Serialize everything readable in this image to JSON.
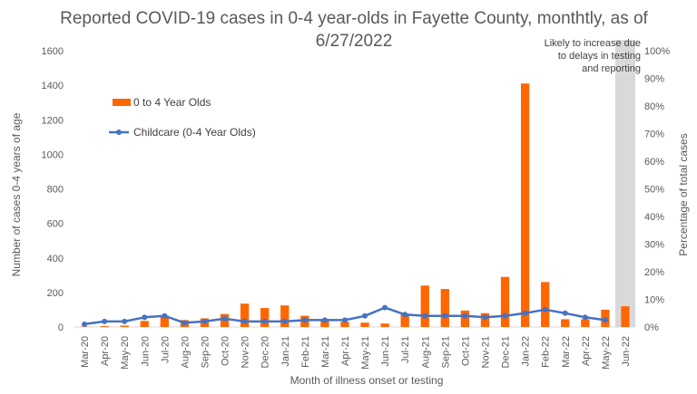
{
  "chart_data": {
    "type": "bar",
    "title": "Reported COVID-19 cases in 0-4 year-olds in Fayette County, monthtly, as of 6/27/2022",
    "xlabel": "Month of illness onset or testing",
    "ylabel": "Number of cases 0-4 years of age",
    "y2label": "Percentage of total cases",
    "categories": [
      "Mar-20",
      "Apr-20",
      "May-20",
      "Jun-20",
      "Jul-20",
      "Aug-20",
      "Sep-20",
      "Oct-20",
      "Nov-20",
      "Dec-20",
      "Jan-21",
      "Feb-21",
      "Mar-21",
      "Apr-21",
      "May-21",
      "Jun-21",
      "Jul-21",
      "Aug-21",
      "Sep-21",
      "Oct-21",
      "Nov-21",
      "Dec-21",
      "Jan-22",
      "Feb-22",
      "Mar-22",
      "Apr-22",
      "May-22",
      "Jun-22"
    ],
    "ylim": [
      0,
      1600
    ],
    "yticks": [
      "0",
      "200",
      "400",
      "600",
      "800",
      "1000",
      "1200",
      "1400",
      "1600"
    ],
    "y2lim": [
      0,
      100
    ],
    "y2ticks": [
      "0%",
      "10%",
      "20%",
      "30%",
      "40%",
      "50%",
      "60%",
      "70%",
      "80%",
      "90%",
      "100%"
    ],
    "series": [
      {
        "name": "0 to 4 Year Olds",
        "kind": "bar",
        "color": "#ff6600",
        "axis": "left",
        "values": [
          2,
          5,
          8,
          35,
          65,
          40,
          50,
          75,
          135,
          110,
          125,
          65,
          40,
          30,
          25,
          20,
          75,
          240,
          220,
          95,
          80,
          290,
          1410,
          260,
          45,
          45,
          100,
          120
        ]
      },
      {
        "name": "Childcare (0-4 Year Olds)",
        "kind": "line",
        "color": "#4472c4",
        "axis": "right",
        "values": [
          1,
          2,
          2,
          3.5,
          4,
          1.5,
          2,
          3,
          2,
          2,
          2,
          2.5,
          2.5,
          2.5,
          4,
          7,
          4.5,
          4,
          4,
          4,
          3.5,
          4,
          5,
          6.3,
          5,
          3.5,
          2.5,
          null
        ]
      }
    ],
    "shaded_category": "Jun-22",
    "shade_color": "#d9d9d9",
    "annotation": [
      "Likely to increase due",
      "to delays in testing",
      "and reporting"
    ],
    "legend_position": "top-left",
    "grid": false
  }
}
